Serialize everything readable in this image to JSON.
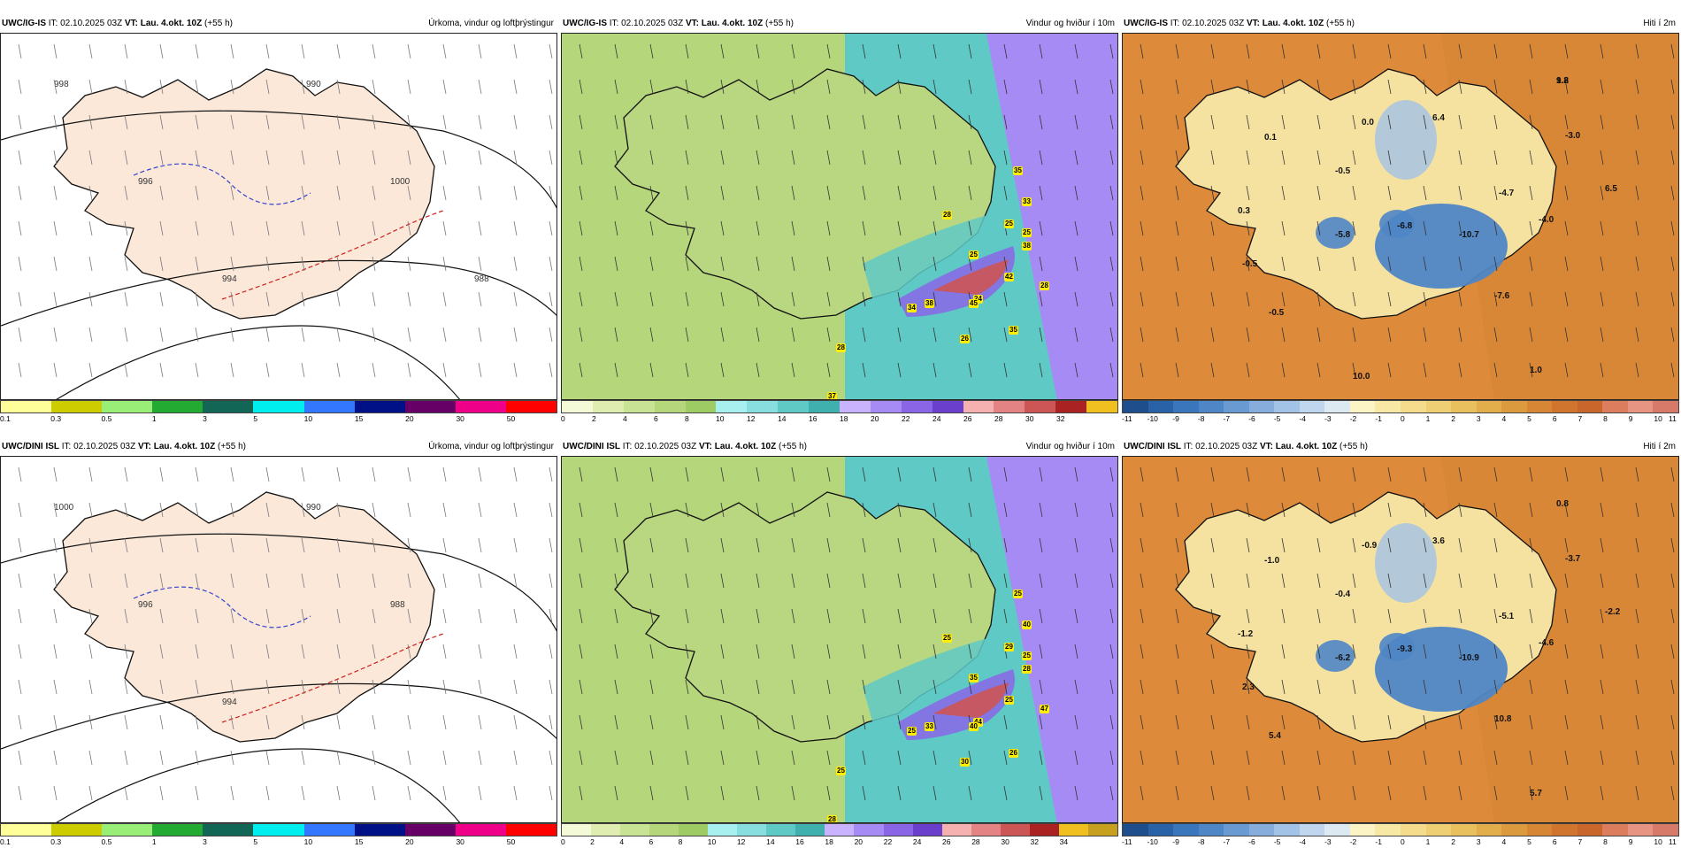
{
  "colors": {
    "land_precip": "#fbe8d8",
    "sea_precip": "#ffffff",
    "wind_land": "#b9d680",
    "wind_sea": "#5fc9c5",
    "temp_land": "#f6e2a0",
    "temp_sea": "#dd8a3a",
    "temp_cold": "#4f86c6"
  },
  "rows": [
    {
      "panels": [
        {
          "type": "precip",
          "model": "UWC/IG-IS",
          "it": "IT: 02.10.2025 03Z",
          "vt": "VT: Lau. 4.okt. 10Z",
          "lead": "(+55 h)",
          "title": "Úrkoma, vindur og loftþrýstingur",
          "scale_colors": [
            "#ffff99",
            "#cccc00",
            "#99ee77",
            "#22aa33",
            "#116655",
            "#00eeee",
            "#3377ff",
            "#001188",
            "#660066",
            "#ee0088",
            "#ff0000"
          ],
          "scale_ticks": [
            "0.1",
            "0.3",
            "0.5",
            "1",
            "3",
            "5",
            "10",
            "15",
            "20",
            "30",
            "50"
          ],
          "isobars": [
            "998",
            "996",
            "994",
            "990",
            "1000",
            "988"
          ],
          "labels": []
        },
        {
          "type": "wind",
          "model": "UWC/IG-IS",
          "it": "IT: 02.10.2025 03Z",
          "vt": "VT: Lau. 4.okt. 10Z",
          "lead": "(+55 h)",
          "title": "Vindur og hviður í 10m",
          "scale_colors": [
            "#f4f9d8",
            "#dfeeb0",
            "#c8e394",
            "#b5d67a",
            "#9ecb64",
            "#a8f0f0",
            "#88dede",
            "#5fc9c5",
            "#3fb0ae",
            "#c9b3ff",
            "#a78bf5",
            "#8a66e6",
            "#6a3fcc",
            "#f5b0b0",
            "#e38383",
            "#cc5555",
            "#aa2222",
            "#f0c020"
          ],
          "scale_ticks": [
            "0",
            "2",
            "4",
            "6",
            "8",
            "10",
            "12",
            "14",
            "16",
            "18",
            "20",
            "22",
            "24",
            "26",
            "28",
            "30",
            "32"
          ],
          "gusts": [
            "35",
            "33",
            "25",
            "28",
            "38",
            "25",
            "42",
            "28",
            "24",
            "34",
            "38",
            "45",
            "26",
            "28",
            "37",
            "25",
            "35"
          ]
        },
        {
          "type": "temp",
          "model": "UWC/IG-IS",
          "it": "IT: 02.10.2025 03Z",
          "vt": "VT: Lau. 4.okt. 10Z",
          "lead": "(+55 h)",
          "title": "Hiti í 2m",
          "scale_colors": [
            "#1f4e8c",
            "#2a62a8",
            "#3a76bc",
            "#4f86c6",
            "#6a9ad2",
            "#86addc",
            "#a2c2e6",
            "#bfd6ee",
            "#dce8f2",
            "#fcf4c4",
            "#f8e8a6",
            "#f4dc8c",
            "#eecf74",
            "#e8c05e",
            "#e2ae4c",
            "#dc9a3e",
            "#d68634",
            "#d0752e",
            "#c9662c",
            "#dc7d5e",
            "#e89482",
            "#d87a6a"
          ],
          "scale_ticks": [
            "-11",
            "-10",
            "-9",
            "-8",
            "-7",
            "-6",
            "-5",
            "-4",
            "-3",
            "-2",
            "-1",
            "0",
            "1",
            "2",
            "3",
            "4",
            "5",
            "6",
            "7",
            "8",
            "9",
            "10",
            "11"
          ],
          "values": [
            "1.8",
            "0.0",
            "6.4",
            "0.1",
            "-3.0",
            "-0.5",
            "-4.7",
            "6.5",
            "0.3",
            "-0.5",
            "-5.8",
            "-6.8",
            "-10.7",
            "-4.0",
            "-0.5",
            "-7.6",
            "1.0",
            "10.0",
            "9.2"
          ]
        }
      ]
    },
    {
      "panels": [
        {
          "type": "precip",
          "model": "UWC/DINI ISL",
          "it": "IT: 02.10.2025 03Z",
          "vt": "VT: Lau. 4.okt. 10Z",
          "lead": "(+55 h)",
          "title": "Úrkoma, vindur og loftþrýstingur",
          "scale_colors": [
            "#ffff99",
            "#cccc00",
            "#99ee77",
            "#22aa33",
            "#116655",
            "#00eeee",
            "#3377ff",
            "#001188",
            "#660066",
            "#ee0088",
            "#ff0000"
          ],
          "scale_ticks": [
            "0.1",
            "0.3",
            "0.5",
            "1",
            "3",
            "5",
            "10",
            "15",
            "20",
            "30",
            "50"
          ],
          "isobars": [
            "1000",
            "996",
            "994",
            "990",
            "988"
          ],
          "labels": []
        },
        {
          "type": "wind",
          "model": "UWC/DINI ISL",
          "it": "IT: 02.10.2025 03Z",
          "vt": "VT: Lau. 4.okt. 10Z",
          "lead": "(+55 h)",
          "title": "Vindur og hviður í 10m",
          "scale_colors": [
            "#f4f9d8",
            "#dfeeb0",
            "#c8e394",
            "#b5d67a",
            "#9ecb64",
            "#a8f0f0",
            "#88dede",
            "#5fc9c5",
            "#3fb0ae",
            "#c9b3ff",
            "#a78bf5",
            "#8a66e6",
            "#6a3fcc",
            "#f5b0b0",
            "#e38383",
            "#cc5555",
            "#aa2222",
            "#f0c020",
            "#c8a020"
          ],
          "scale_ticks": [
            "0",
            "2",
            "4",
            "6",
            "8",
            "10",
            "12",
            "14",
            "16",
            "18",
            "20",
            "22",
            "24",
            "26",
            "28",
            "30",
            "32",
            "34"
          ],
          "gusts": [
            "25",
            "40",
            "29",
            "25",
            "28",
            "35",
            "25",
            "47",
            "44",
            "25",
            "33",
            "40",
            "30",
            "25",
            "28",
            "25",
            "26"
          ]
        },
        {
          "type": "temp",
          "model": "UWC/DINI ISL",
          "it": "IT: 02.10.2025 03Z",
          "vt": "VT: Lau. 4.okt. 10Z",
          "lead": "(+55 h)",
          "title": "Hiti í 2m",
          "scale_colors": [
            "#1f4e8c",
            "#2a62a8",
            "#3a76bc",
            "#4f86c6",
            "#6a9ad2",
            "#86addc",
            "#a2c2e6",
            "#bfd6ee",
            "#dce8f2",
            "#fcf4c4",
            "#f8e8a6",
            "#f4dc8c",
            "#eecf74",
            "#e8c05e",
            "#e2ae4c",
            "#dc9a3e",
            "#d68634",
            "#d0752e",
            "#c9662c",
            "#dc7d5e",
            "#e89482",
            "#d87a6a"
          ],
          "scale_ticks": [
            "-11",
            "-10",
            "-9",
            "-8",
            "-7",
            "-6",
            "-5",
            "-4",
            "-3",
            "-2",
            "-1",
            "0",
            "1",
            "2",
            "3",
            "4",
            "5",
            "6",
            "7",
            "8",
            "9",
            "10",
            "11"
          ],
          "values": [
            "0.8",
            "-0.9",
            "3.6",
            "-1.0",
            "-3.7",
            "-0.4",
            "-5.1",
            "-2.2",
            "-1.2",
            "2.3",
            "-6.2",
            "-9.3",
            "-10.9",
            "-4.6",
            "5.4",
            "10.8",
            "5.7"
          ]
        }
      ]
    }
  ]
}
